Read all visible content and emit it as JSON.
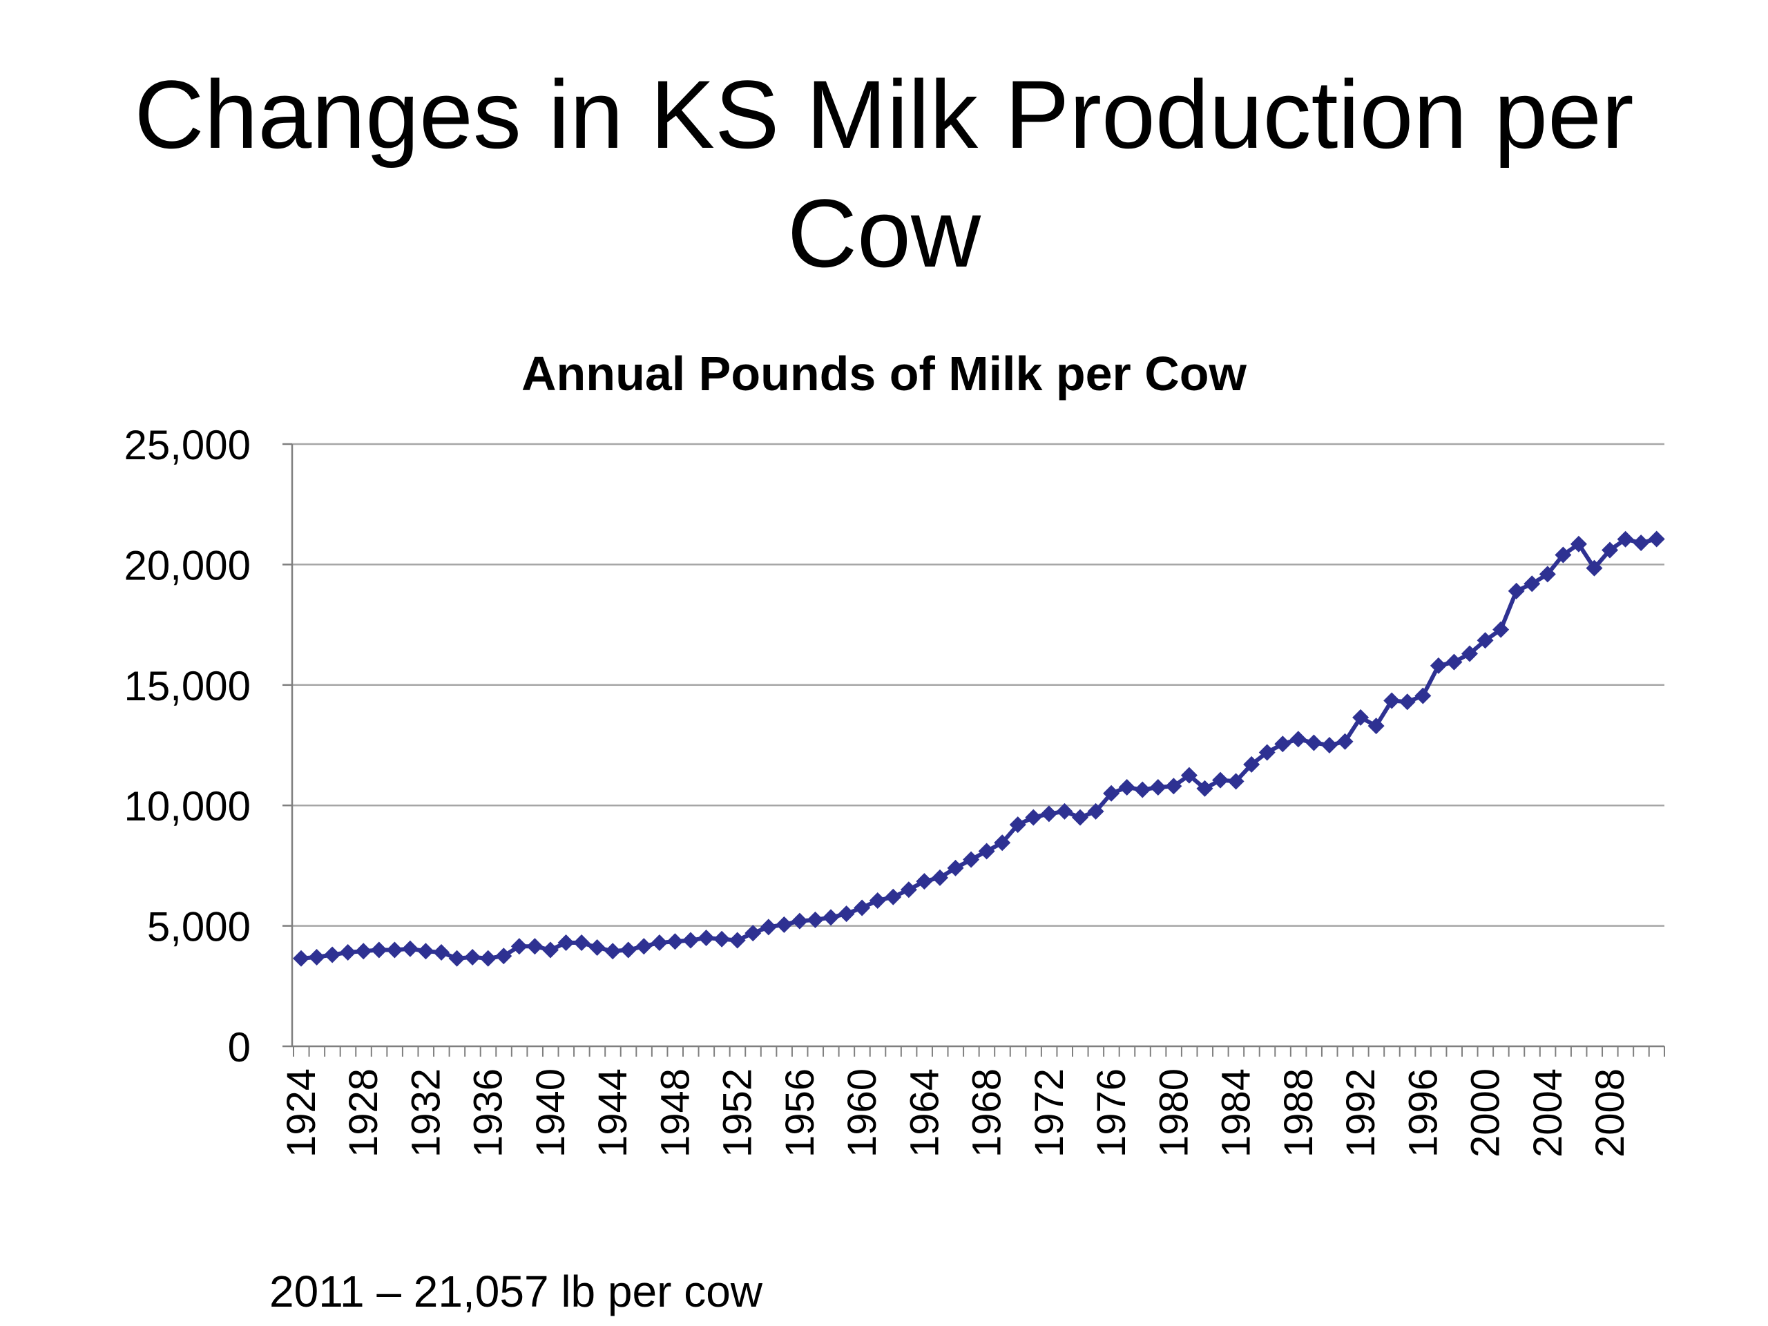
{
  "slide": {
    "title_line1": "Changes in KS Milk Production per",
    "title_line2": "Cow",
    "note": "2011 – 21,057 lb per cow"
  },
  "chart_data": {
    "type": "line",
    "title": "Annual Pounds of Milk per Cow",
    "xlabel": "",
    "ylabel": "",
    "ylim": [
      0,
      25000
    ],
    "yticks": [
      0,
      5000,
      10000,
      15000,
      20000,
      25000
    ],
    "ytick_labels": [
      "0",
      "5,000",
      "10,000",
      "15,000",
      "20,000",
      "25,000"
    ],
    "xticks": [
      1924,
      1928,
      1932,
      1936,
      1940,
      1944,
      1948,
      1952,
      1956,
      1960,
      1964,
      1968,
      1972,
      1976,
      1980,
      1984,
      1988,
      1992,
      1996,
      2000,
      2004,
      2008
    ],
    "grid": true,
    "legend": "none",
    "line_color": "#2e3192",
    "marker": "diamond",
    "x": [
      1924,
      1925,
      1926,
      1927,
      1928,
      1929,
      1930,
      1931,
      1932,
      1933,
      1934,
      1935,
      1936,
      1937,
      1938,
      1939,
      1940,
      1941,
      1942,
      1943,
      1944,
      1945,
      1946,
      1947,
      1948,
      1949,
      1950,
      1951,
      1952,
      1953,
      1954,
      1955,
      1956,
      1957,
      1958,
      1959,
      1960,
      1961,
      1962,
      1963,
      1964,
      1965,
      1966,
      1967,
      1968,
      1969,
      1970,
      1971,
      1972,
      1973,
      1974,
      1975,
      1976,
      1977,
      1978,
      1979,
      1980,
      1981,
      1982,
      1983,
      1984,
      1985,
      1986,
      1987,
      1988,
      1989,
      1990,
      1991,
      1992,
      1993,
      1994,
      1995,
      1996,
      1997,
      1998,
      1999,
      2000,
      2001,
      2002,
      2003,
      2004,
      2005,
      2006,
      2007,
      2008,
      2009,
      2010,
      2011
    ],
    "values": [
      3650,
      3700,
      3800,
      3900,
      3950,
      4000,
      4000,
      4050,
      3950,
      3900,
      3650,
      3700,
      3650,
      3750,
      4150,
      4150,
      4000,
      4300,
      4300,
      4100,
      3950,
      4000,
      4150,
      4300,
      4350,
      4400,
      4500,
      4450,
      4400,
      4700,
      4950,
      5050,
      5200,
      5250,
      5350,
      5500,
      5750,
      6050,
      6200,
      6500,
      6850,
      7000,
      7400,
      7750,
      8100,
      8450,
      9200,
      9500,
      9650,
      9750,
      9500,
      9750,
      10500,
      10750,
      10650,
      10750,
      10800,
      11250,
      10700,
      11050,
      11000,
      11700,
      12200,
      12550,
      12750,
      12600,
      12500,
      12650,
      13650,
      13300,
      14350,
      14300,
      14550,
      15800,
      15950,
      16300,
      16850,
      17300,
      18900,
      19200,
      19600,
      20400,
      20850,
      19850,
      20600,
      21050,
      20900,
      21057
    ]
  }
}
